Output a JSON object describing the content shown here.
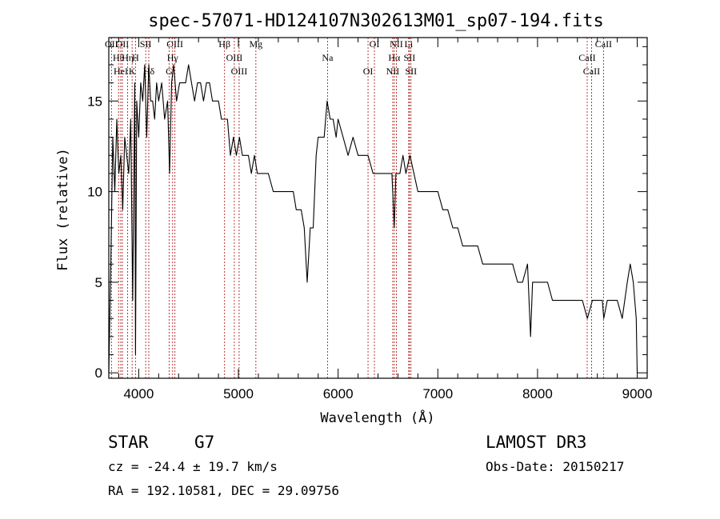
{
  "chart_data": {
    "type": "line",
    "title": "spec-57071-HD124107N302613M01_sp07-194.fits",
    "xlabel": "Wavelength (Å)",
    "ylabel": "Flux (relative)",
    "xlim": [
      3700,
      9100
    ],
    "ylim": [
      -0.3,
      18.5
    ],
    "xticks": [
      4000,
      5000,
      6000,
      7000,
      8000,
      9000
    ],
    "yticks": [
      0,
      5,
      10,
      15
    ],
    "grid": false,
    "series": [
      {
        "name": "spectrum",
        "x": [
          3700,
          3720,
          3740,
          3760,
          3780,
          3800,
          3820,
          3840,
          3860,
          3880,
          3900,
          3920,
          3940,
          3960,
          3968,
          3980,
          4000,
          4020,
          4040,
          4060,
          4080,
          4101,
          4120,
          4140,
          4160,
          4180,
          4200,
          4230,
          4260,
          4290,
          4310,
          4330,
          4350,
          4380,
          4410,
          4440,
          4470,
          4500,
          4530,
          4560,
          4590,
          4620,
          4650,
          4680,
          4710,
          4740,
          4770,
          4800,
          4830,
          4861,
          4890,
          4920,
          4950,
          4980,
          5010,
          5040,
          5070,
          5100,
          5130,
          5160,
          5190,
          5220,
          5250,
          5300,
          5350,
          5400,
          5450,
          5500,
          5520,
          5550,
          5580,
          5600,
          5630,
          5660,
          5690,
          5720,
          5750,
          5780,
          5800,
          5830,
          5860,
          5890,
          5920,
          5950,
          5980,
          6000,
          6050,
          6100,
          6150,
          6200,
          6250,
          6300,
          6350,
          6400,
          6450,
          6500,
          6540,
          6563,
          6580,
          6620,
          6650,
          6680,
          6720,
          6760,
          6800,
          6850,
          6900,
          6950,
          7000,
          7050,
          7100,
          7150,
          7200,
          7250,
          7300,
          7350,
          7400,
          7450,
          7500,
          7550,
          7600,
          7650,
          7700,
          7750,
          7800,
          7850,
          7900,
          7930,
          7950,
          8000,
          8050,
          8100,
          8150,
          8200,
          8250,
          8300,
          8350,
          8400,
          8450,
          8500,
          8550,
          8600,
          8620,
          8650,
          8664,
          8700,
          8750,
          8800,
          8850,
          8900,
          8930,
          8960,
          8990,
          9000
        ],
        "values": [
          0,
          6,
          13,
          10,
          14,
          11,
          12,
          9,
          13,
          12,
          11,
          14,
          4,
          16,
          1,
          15,
          13,
          16,
          15,
          17,
          13,
          17,
          15,
          15,
          14,
          16,
          15,
          16,
          14,
          15,
          11,
          16,
          17,
          15,
          16,
          16,
          16,
          17,
          16,
          15,
          16,
          16,
          15,
          16,
          16,
          15,
          15,
          15,
          14,
          14,
          14,
          12,
          13,
          12,
          13,
          12,
          12,
          12,
          11,
          12,
          11,
          11,
          11,
          11,
          10,
          10,
          10,
          10,
          10,
          10,
          9,
          9,
          9,
          8,
          5,
          8,
          8,
          12,
          13,
          13,
          13,
          15,
          14,
          14,
          13,
          14,
          13,
          12,
          13,
          12,
          12,
          12,
          11,
          11,
          11,
          11,
          11,
          8,
          11,
          11,
          12,
          11,
          12,
          11,
          10,
          10,
          10,
          10,
          10,
          9,
          9,
          8,
          8,
          7,
          7,
          7,
          7,
          6,
          6,
          6,
          6,
          6,
          6,
          6,
          5,
          5,
          6,
          2,
          5,
          5,
          5,
          5,
          4,
          4,
          4,
          4,
          4,
          4,
          4,
          3,
          4,
          4,
          4,
          4,
          3,
          4,
          4,
          4,
          3,
          5,
          6,
          5,
          3,
          0
        ]
      }
    ],
    "line_markers": [
      {
        "label": "OII",
        "x": 3727
      },
      {
        "label": "Hθ",
        "x": 3798
      },
      {
        "label": "HeI",
        "x": 3820
      },
      {
        "label": "OII",
        "x": 3836
      },
      {
        "label": "Hη",
        "x": 3889
      },
      {
        "label": "K",
        "x": 3934
      },
      {
        "label": "SII",
        "x": 4070
      },
      {
        "label": "H",
        "x": 3968
      },
      {
        "label": "Hδ",
        "x": 4101
      },
      {
        "label": "OIII",
        "x": 4363
      },
      {
        "label": "Hγ",
        "x": 4340
      },
      {
        "label": "G",
        "x": 4305
      },
      {
        "label": "Hβ",
        "x": 4861
      },
      {
        "label": "OIII",
        "x": 4959
      },
      {
        "label": "OIII",
        "x": 5007
      },
      {
        "label": "Mg",
        "x": 5175
      },
      {
        "label": "Na",
        "x": 5894
      },
      {
        "label": "OI",
        "x": 6300
      },
      {
        "label": "OI",
        "x": 6364
      },
      {
        "label": "Hα",
        "x": 6563
      },
      {
        "label": "NII",
        "x": 6548
      },
      {
        "label": "NII",
        "x": 6584
      },
      {
        "label": "SII",
        "x": 6716
      },
      {
        "label": "SII",
        "x": 6731
      },
      {
        "label": "Li",
        "x": 6708
      },
      {
        "label": "CaII",
        "x": 8498
      },
      {
        "label": "CaII",
        "x": 8542
      },
      {
        "label": "CaII",
        "x": 8662
      }
    ]
  },
  "info": {
    "class_label": "STAR",
    "subclass": "G7",
    "redshift": "cz = -24.4 ± 19.7 km/s",
    "coords": "RA = 192.10581, DEC =  29.09756",
    "survey": "LAMOST DR3",
    "obs_date": "Obs-Date: 20150217"
  },
  "colors": {
    "spectrum": "#000000",
    "marker_line": "#b22222",
    "axis": "#000000"
  }
}
